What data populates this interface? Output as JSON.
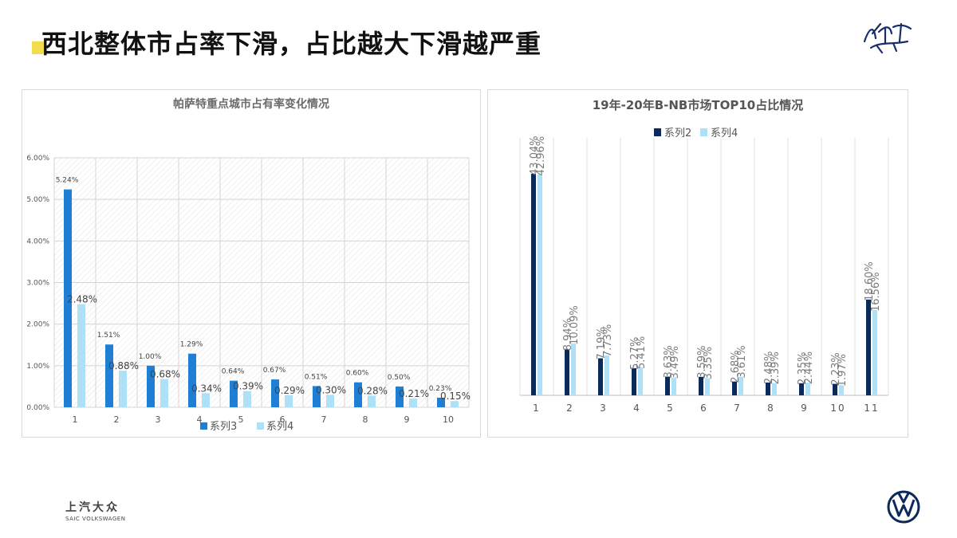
{
  "page": {
    "title": "西北整体市占率下滑，占比越大下滑越严重",
    "footer_cn": "上汽大众",
    "footer_en": "SAIC VOLKSWAGEN"
  },
  "colors": {
    "dark_blue": "#0b2a5c",
    "mid_blue": "#1f7fd4",
    "light_blue": "#aee0f7",
    "accent_yellow": "#f3dc4a"
  },
  "chart_data": [
    {
      "type": "bar",
      "title": "帕萨特重点城市占有率变化情况",
      "categories": [
        "1",
        "2",
        "3",
        "4",
        "5",
        "6",
        "7",
        "8",
        "9",
        "10"
      ],
      "series": [
        {
          "name": "系列3",
          "values": [
            5.24,
            1.51,
            1.0,
            1.29,
            0.64,
            0.67,
            0.51,
            0.6,
            0.5,
            0.23
          ],
          "labels": [
            "5.24%",
            "1.51%",
            "1.00%",
            "1.29%",
            "0.64%",
            "0.67%",
            "0.51%",
            "0.60%",
            "0.50%",
            "0.23%"
          ]
        },
        {
          "name": "系列4",
          "values": [
            2.48,
            0.88,
            0.68,
            0.34,
            0.39,
            0.29,
            0.3,
            0.28,
            0.21,
            0.15
          ],
          "labels": [
            "2.48%",
            "0.88%",
            "0.68%",
            "0.34%",
            "0.39%",
            "0.29%",
            "0.30%",
            "0.28%",
            "0.21%",
            "0.15%"
          ]
        }
      ],
      "ylim": [
        0,
        6
      ],
      "yticks": [
        "0.00%",
        "1.00%",
        "2.00%",
        "3.00%",
        "4.00%",
        "5.00%",
        "6.00%"
      ],
      "legend": "bottom",
      "grid": true
    },
    {
      "type": "bar",
      "title": "19年-20年B-NB市场TOP10占比情况",
      "categories": [
        "1",
        "2",
        "3",
        "4",
        "5",
        "6",
        "7",
        "8",
        "9",
        "10",
        "11"
      ],
      "series": [
        {
          "name": "系列2",
          "values": [
            43.04,
            8.94,
            7.19,
            5.27,
            3.63,
            3.59,
            2.68,
            2.48,
            2.35,
            2.23,
            18.6
          ],
          "labels": [
            "43.04%",
            "8.94%",
            "7.19%",
            "5.27%",
            "3.63%",
            "3.59%",
            "2.68%",
            "2.48%",
            "2.35%",
            "2.23%",
            "18.60%"
          ]
        },
        {
          "name": "系列4",
          "values": [
            42.96,
            10.09,
            7.73,
            5.41,
            3.49,
            3.35,
            3.61,
            2.39,
            2.44,
            1.97,
            16.56
          ],
          "labels": [
            "42.96%",
            "10.09%",
            "7.73%",
            "5.41%",
            "3.49%",
            "3.35%",
            "3.61%",
            "2.39%",
            "2.44%",
            "1.97%",
            "16.56%"
          ]
        }
      ],
      "legend": "top",
      "grid": true
    }
  ]
}
